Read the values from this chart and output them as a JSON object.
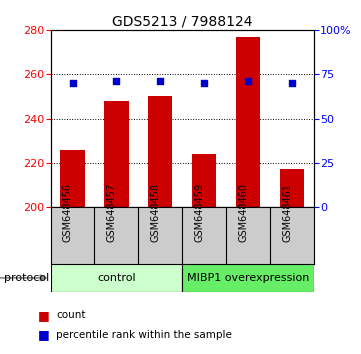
{
  "title": "GDS5213 / 7988124",
  "samples": [
    "GSM648456",
    "GSM648457",
    "GSM648458",
    "GSM648459",
    "GSM648460",
    "GSM648461"
  ],
  "counts": [
    226,
    248,
    250,
    224,
    277,
    217
  ],
  "percentile_ranks": [
    70,
    71,
    71,
    70,
    71,
    70
  ],
  "ylim_left": [
    200,
    280
  ],
  "ylim_right": [
    0,
    100
  ],
  "yticks_left": [
    200,
    220,
    240,
    260,
    280
  ],
  "yticks_right": [
    0,
    25,
    50,
    75,
    100
  ],
  "ytick_labels_right": [
    "0",
    "25",
    "50",
    "75",
    "100%"
  ],
  "bar_color": "#cc0000",
  "dot_color": "#0000cc",
  "bar_width": 0.55,
  "control_color": "#ccffcc",
  "mibp1_color": "#66ee66",
  "label_bg_color": "#cccccc",
  "background_color": "#ffffff",
  "title_fontsize": 10,
  "tick_fontsize": 8,
  "label_fontsize": 7,
  "legend_fontsize": 7.5,
  "protocol_fontsize": 8,
  "protocol_label": "protocol"
}
